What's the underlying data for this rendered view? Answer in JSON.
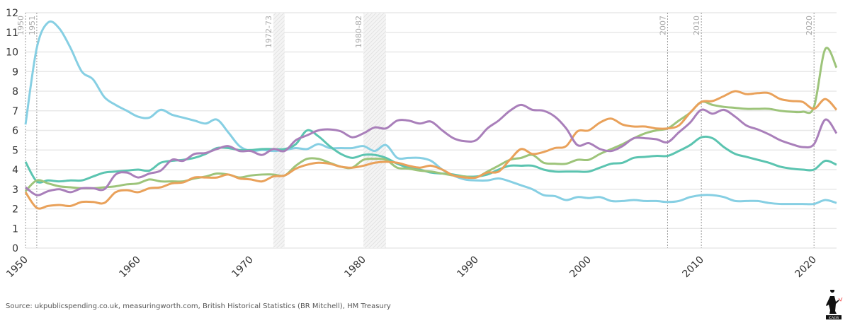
{
  "chart_data": {
    "type": "line",
    "title": "",
    "xlabel": "",
    "ylabel": "",
    "xlim": [
      1950,
      2022
    ],
    "ylim": [
      0,
      12
    ],
    "yticks": [
      "0",
      "1",
      "2",
      "3",
      "4",
      "5",
      "6",
      "7",
      "8",
      "9",
      "10",
      "11",
      "12"
    ],
    "xticks": [
      "1950",
      "1960",
      "1970",
      "1980",
      "1990",
      "2000",
      "2010",
      "2020"
    ],
    "grid": "horizontal",
    "annotations": {
      "lines": [
        {
          "year": 1950,
          "label": "1950"
        },
        {
          "year": 1951,
          "label": "1951"
        },
        {
          "year": 2007,
          "label": "2007"
        },
        {
          "year": 2010,
          "label": "2010"
        },
        {
          "year": 2020,
          "label": "2020"
        }
      ],
      "bands": [
        {
          "from": 1972,
          "to": 1973,
          "label": "1972-73"
        },
        {
          "from": 1980,
          "to": 1982,
          "label": "1980-82"
        }
      ]
    },
    "x_start": 1950,
    "series": [
      {
        "color": "#86cfe3",
        "values": [
          6.3,
          10.2,
          11.5,
          11.2,
          10.2,
          9.0,
          8.6,
          7.7,
          7.3,
          7.0,
          6.7,
          6.65,
          7.05,
          6.8,
          6.65,
          6.5,
          6.35,
          6.55,
          5.9,
          5.2,
          4.95,
          5.0,
          4.95,
          5.0,
          5.1,
          5.05,
          5.3,
          5.1,
          5.1,
          5.1,
          5.2,
          4.95,
          5.25,
          4.6,
          4.6,
          4.6,
          4.45,
          4.0,
          3.7,
          3.5,
          3.45,
          3.45,
          3.55,
          3.4,
          3.2,
          3.0,
          2.7,
          2.65,
          2.45,
          2.6,
          2.55,
          2.6,
          2.4,
          2.4,
          2.45,
          2.4,
          2.4,
          2.35,
          2.4,
          2.6,
          2.7,
          2.7,
          2.6,
          2.4,
          2.4,
          2.4,
          2.3,
          2.25,
          2.25,
          2.25,
          2.25,
          2.45,
          2.3
        ]
      },
      {
        "color": "#5bc4b0",
        "values": [
          4.4,
          3.4,
          3.45,
          3.4,
          3.45,
          3.45,
          3.65,
          3.85,
          3.9,
          3.95,
          4.0,
          3.95,
          4.35,
          4.45,
          4.5,
          4.6,
          4.8,
          5.1,
          5.1,
          5.0,
          5.0,
          5.05,
          5.05,
          5.05,
          5.3,
          6.0,
          5.7,
          5.2,
          4.8,
          4.6,
          4.75,
          4.75,
          4.6,
          4.3,
          4.1,
          4.0,
          3.85,
          3.8,
          3.75,
          3.65,
          3.65,
          3.75,
          4.0,
          4.2,
          4.2,
          4.2,
          4.0,
          3.9,
          3.9,
          3.9,
          3.9,
          4.1,
          4.3,
          4.35,
          4.6,
          4.65,
          4.7,
          4.7,
          4.95,
          5.25,
          5.65,
          5.6,
          5.15,
          4.8,
          4.65,
          4.5,
          4.35,
          4.15,
          4.05,
          4.0,
          4.0,
          4.45,
          4.25
        ]
      },
      {
        "color": "#9dc47a",
        "values": [
          2.9,
          3.45,
          3.3,
          3.15,
          3.1,
          3.05,
          3.05,
          3.1,
          3.15,
          3.25,
          3.3,
          3.5,
          3.4,
          3.4,
          3.4,
          3.55,
          3.65,
          3.8,
          3.75,
          3.6,
          3.7,
          3.75,
          3.75,
          3.7,
          4.2,
          4.55,
          4.55,
          4.35,
          4.15,
          4.1,
          4.5,
          4.55,
          4.5,
          4.1,
          4.05,
          3.95,
          3.9,
          3.8,
          3.7,
          3.65,
          3.6,
          3.9,
          4.2,
          4.5,
          4.6,
          4.75,
          4.35,
          4.3,
          4.3,
          4.5,
          4.5,
          4.8,
          5.05,
          5.3,
          5.6,
          5.85,
          6.0,
          6.1,
          6.5,
          6.9,
          7.45,
          7.3,
          7.2,
          7.15,
          7.1,
          7.1,
          7.1,
          7.0,
          6.95,
          6.95,
          7.2,
          10.15,
          9.2
        ]
      },
      {
        "color": "#e9a15a",
        "values": [
          2.85,
          2.05,
          2.15,
          2.2,
          2.15,
          2.35,
          2.35,
          2.3,
          2.85,
          2.95,
          2.85,
          3.05,
          3.1,
          3.3,
          3.35,
          3.6,
          3.6,
          3.6,
          3.75,
          3.55,
          3.5,
          3.4,
          3.65,
          3.7,
          4.05,
          4.25,
          4.35,
          4.3,
          4.15,
          4.1,
          4.2,
          4.35,
          4.4,
          4.35,
          4.2,
          4.1,
          4.2,
          4.0,
          3.7,
          3.6,
          3.6,
          3.85,
          3.9,
          4.5,
          5.05,
          4.8,
          4.9,
          5.1,
          5.2,
          5.95,
          6.0,
          6.4,
          6.6,
          6.3,
          6.2,
          6.2,
          6.1,
          6.1,
          6.25,
          6.9,
          7.45,
          7.5,
          7.75,
          8.0,
          7.85,
          7.9,
          7.9,
          7.6,
          7.5,
          7.45,
          7.1,
          7.6,
          7.05
        ]
      },
      {
        "color": "#a97fba",
        "values": [
          3.1,
          2.7,
          2.9,
          3.0,
          2.85,
          3.05,
          3.05,
          3.0,
          3.75,
          3.85,
          3.6,
          3.8,
          3.95,
          4.5,
          4.45,
          4.8,
          4.85,
          5.05,
          5.2,
          4.95,
          4.95,
          4.75,
          5.05,
          4.95,
          5.5,
          5.75,
          6.0,
          6.05,
          5.95,
          5.65,
          5.85,
          6.15,
          6.1,
          6.5,
          6.5,
          6.35,
          6.45,
          6.0,
          5.6,
          5.45,
          5.5,
          6.1,
          6.5,
          7.0,
          7.3,
          7.05,
          7.0,
          6.7,
          6.1,
          5.25,
          5.35,
          5.05,
          4.95,
          5.2,
          5.6,
          5.6,
          5.55,
          5.4,
          5.9,
          6.4,
          7.05,
          6.85,
          7.05,
          6.7,
          6.25,
          6.05,
          5.8,
          5.5,
          5.3,
          5.15,
          5.3,
          6.55,
          5.85
        ]
      }
    ]
  },
  "footer": {
    "source": "Source: ukpublicspending.co.uk, measuringworth.com, British Historical Statistics (BR Mitchell), HM Treasury",
    "logo_text": "ICAEW"
  }
}
